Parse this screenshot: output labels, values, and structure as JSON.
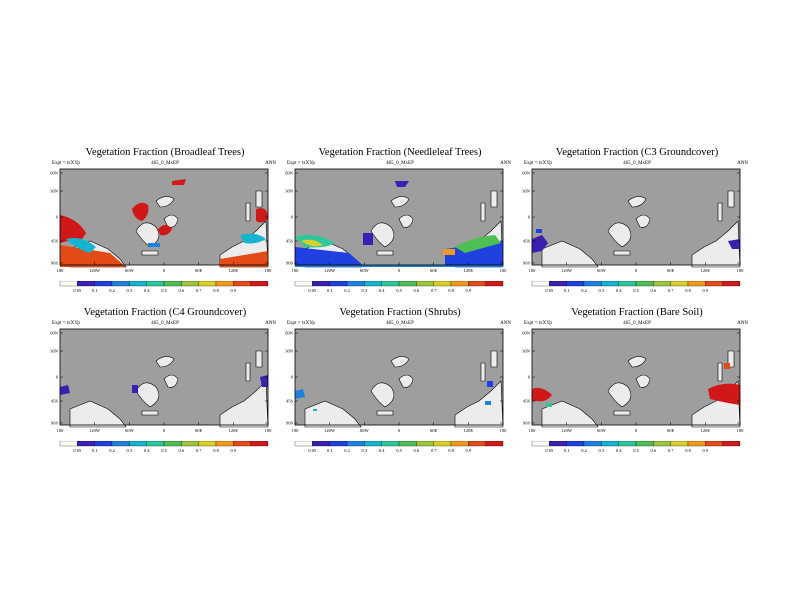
{
  "meta": {
    "expt": "Expt = txXYp",
    "run": "465_0_MxEP",
    "period": "ANN"
  },
  "axes": {
    "lat_ticks": [
      "60N",
      "30N",
      "0",
      "45S",
      "90S"
    ],
    "lon_ticks": [
      "180",
      "120W",
      "60W",
      "0",
      "60E",
      "120E",
      "180"
    ]
  },
  "colorbar": {
    "labels": [
      "0.05",
      "0.1",
      "0.2",
      "0.3",
      "0.4",
      "0.5",
      "0.6",
      "0.7",
      "0.8",
      "0.9"
    ],
    "colors": [
      "#ffffff",
      "#3a1fb0",
      "#2040e0",
      "#1e7fe0",
      "#16b4cf",
      "#2ec79b",
      "#4dbf55",
      "#9cc63c",
      "#d8cf2a",
      "#f39a1c",
      "#e24a18",
      "#d01818"
    ]
  },
  "colors": {
    "ocean": "#9e9e9e",
    "outline": "#000000",
    "land_low": "#ececec"
  },
  "panels": [
    {
      "id": "broadleaf",
      "title": "Vegetation Fraction (Broadleaf Trees)"
    },
    {
      "id": "needleleaf",
      "title": "Vegetation Fraction (Needleleaf Trees)"
    },
    {
      "id": "c3",
      "title": "Vegetation Fraction (C3 Groundcover)"
    },
    {
      "id": "c4",
      "title": "Vegetation Fraction (C4 Groundcover)"
    },
    {
      "id": "shrubs",
      "title": "Vegetation Fraction (Shrubs)"
    },
    {
      "id": "baresoil",
      "title": "Vegetation Fraction (Bare Soil)"
    }
  ]
}
